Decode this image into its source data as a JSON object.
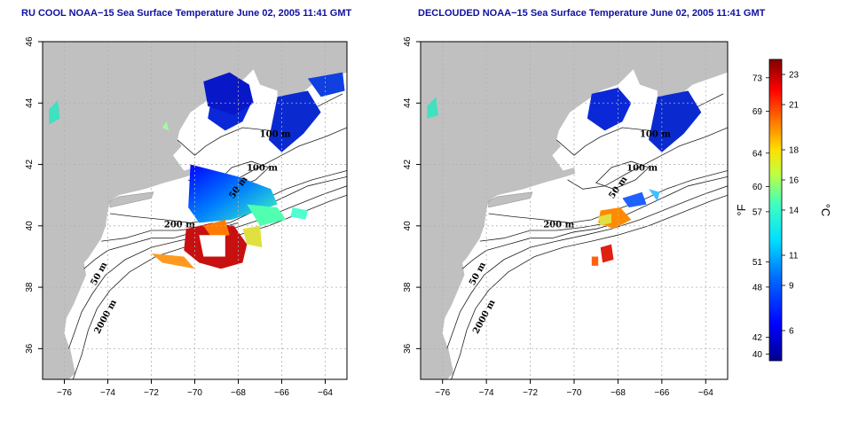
{
  "panels": [
    {
      "id": "left",
      "title": "RU COOL NOAA−15 Sea Surface Temperature June 02, 2005 11:41 GMT",
      "contour_labels": [
        "100 m",
        "100 m",
        "50 m",
        "200 m",
        "50 m",
        "2000 m"
      ],
      "variant": "raw"
    },
    {
      "id": "right",
      "title": "DECLOUDED NOAA−15 Sea Surface Temperature June 02, 2005 11:41 GMT",
      "contour_labels": [
        "100 m",
        "100 m",
        "50 m",
        "200 m",
        "50 m",
        "2000 m"
      ],
      "variant": "declouded"
    }
  ],
  "axes": {
    "x_ticks": [
      "−76",
      "−74",
      "−72",
      "−70",
      "−68",
      "−66",
      "−64"
    ],
    "y_ticks": [
      "46",
      "44",
      "42",
      "40",
      "38",
      "36"
    ]
  },
  "colorbar": {
    "fahrenheit_ticks": [
      "73",
      "69",
      "64",
      "60",
      "57",
      "51",
      "48",
      "42",
      "40"
    ],
    "celsius_ticks": [
      "23",
      "21",
      "18",
      "16",
      "14",
      "11",
      "9",
      "6"
    ],
    "fahrenheit_unit": "°F",
    "celsius_unit": "°C",
    "range_c": [
      4,
      24
    ]
  },
  "colors": {
    "land": "#c0c0c0",
    "grid": "#b0b0b0",
    "title": "#1010a0"
  }
}
